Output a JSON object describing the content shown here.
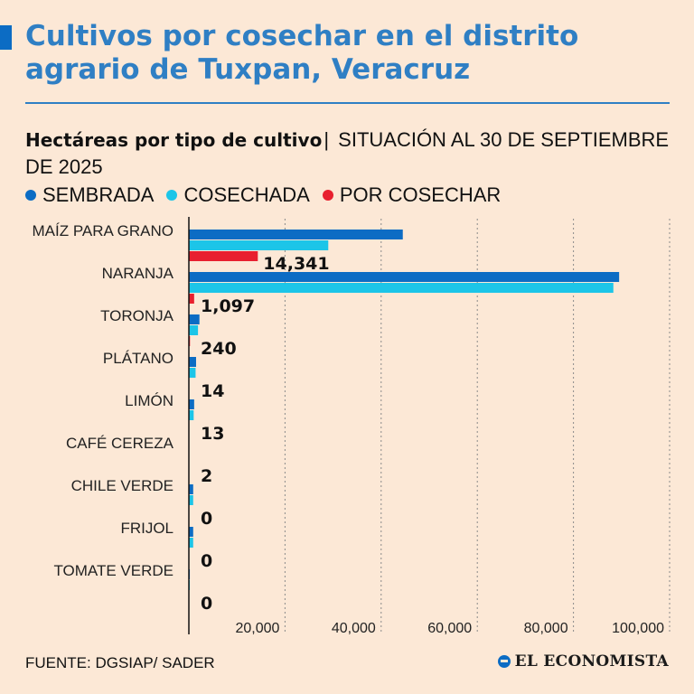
{
  "header": {
    "title": "Cultivos por cosechar en el distrito agrario de Tuxpan, Veracruz",
    "subtitle_bold": "Hectáreas por tipo de cultivo",
    "subtitle_sep": "|",
    "subtitle_rest": "SITUACIÓN AL 30 DE SEPTIEMBRE DE 2025"
  },
  "colors": {
    "title": "#2f7fc4",
    "sembrada": "#0c6cc4",
    "cosechada": "#1cc5e8",
    "por_cosechar": "#e8202f",
    "grid": "#8a8a8a"
  },
  "legend": [
    {
      "label": "SEMBRADA",
      "color_key": "sembrada"
    },
    {
      "label": "COSECHADA",
      "color_key": "cosechada"
    },
    {
      "label": "POR COSECHAR",
      "color_key": "por_cosechar"
    }
  ],
  "chart_data": {
    "type": "bar",
    "orientation": "horizontal",
    "title": "Hectáreas por tipo de cultivo",
    "xlabel": "",
    "ylabel": "",
    "xlim": [
      0,
      100000
    ],
    "xticks": [
      20000,
      40000,
      60000,
      80000,
      100000
    ],
    "xtick_labels": [
      "20,000",
      "40,000",
      "60,000",
      "80,000",
      "100,000"
    ],
    "grid": true,
    "legend_position": "top",
    "categories": [
      "MAÍZ PARA GRANO",
      "NARANJA",
      "TORONJA",
      "PLÁTANO",
      "LIMÓN",
      "CAFÉ CEREZA",
      "CHILE VERDE",
      "FRIJOL",
      "TOMATE VERDE"
    ],
    "series": [
      {
        "name": "SEMBRADA",
        "values": [
          44500,
          89500,
          2200,
          1500,
          1100,
          50,
          900,
          900,
          200
        ]
      },
      {
        "name": "COSECHADA",
        "values": [
          29000,
          88300,
          1900,
          1400,
          1000,
          40,
          900,
          900,
          200
        ]
      },
      {
        "name": "POR COSECHAR",
        "values": [
          14341,
          1097,
          240,
          14,
          13,
          2,
          0,
          0,
          0
        ]
      }
    ],
    "data_labels": [
      "14,341",
      "1,097",
      "240",
      "14",
      "13",
      "2",
      "0",
      "0",
      "0"
    ]
  },
  "footer": {
    "source": "FUENTE: DGSIAP/ SADER",
    "brand": "EL ECONOMISTA"
  }
}
